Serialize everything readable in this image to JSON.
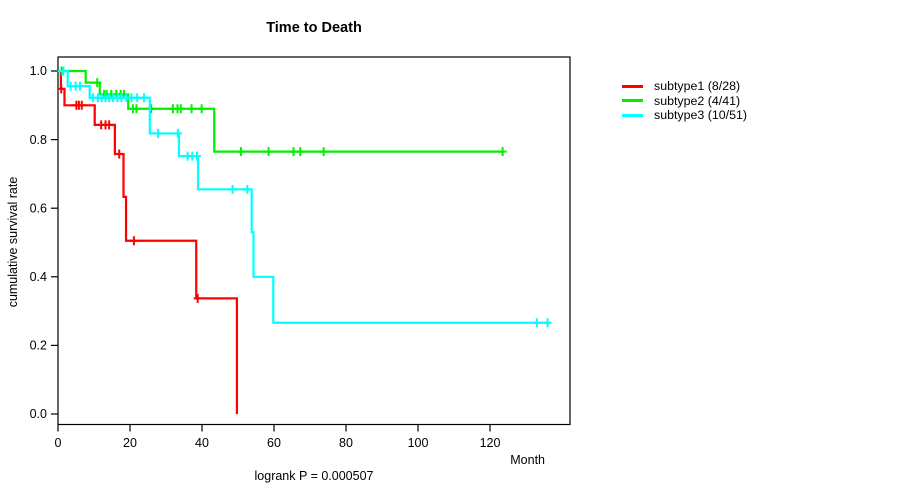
{
  "chart_data": {
    "type": "line",
    "subtype": "kaplan_meier_step_survival",
    "title": "Time to Death",
    "ylabel": "cumulative survival rate",
    "xlabel": "Month",
    "annotation": "logrank P = 0.000507",
    "xlim": [
      0,
      142
    ],
    "ylim": [
      0,
      1
    ],
    "x_ticks": [
      0,
      20,
      40,
      60,
      80,
      100,
      120
    ],
    "y_ticks": [
      0.0,
      0.2,
      0.4,
      0.6,
      0.8,
      1.0
    ],
    "grid": false,
    "legend_position": "right",
    "frame_color": "#000000",
    "series": [
      {
        "name": "subtype1 (8/28)",
        "color": "#FF0000",
        "steps": [
          [
            0,
            1.0
          ],
          [
            0.8,
            0.948
          ],
          [
            1.8,
            0.9
          ],
          [
            10.2,
            0.843
          ],
          [
            15.8,
            0.758
          ],
          [
            18.2,
            0.633
          ],
          [
            18.9,
            0.505
          ],
          [
            38.4,
            0.337
          ],
          [
            49.7,
            0.0
          ]
        ],
        "end_x": 49.7,
        "censors": [
          [
            0.9,
            0.948
          ],
          [
            5.1,
            0.9
          ],
          [
            5.8,
            0.9
          ],
          [
            6.6,
            0.9
          ],
          [
            12.0,
            0.843
          ],
          [
            13.2,
            0.843
          ],
          [
            14.2,
            0.843
          ],
          [
            17.0,
            0.758
          ],
          [
            21.1,
            0.505
          ],
          [
            38.8,
            0.337
          ]
        ]
      },
      {
        "name": "subtype2 (4/41)",
        "color": "#00F000",
        "steps": [
          [
            0,
            1.0
          ],
          [
            7.7,
            0.966
          ],
          [
            11.6,
            0.932
          ],
          [
            19.5,
            0.89
          ],
          [
            43.4,
            0.765
          ]
        ],
        "end_x": 123.5,
        "censors": [
          [
            1.0,
            1.0
          ],
          [
            10.9,
            0.966
          ],
          [
            12.8,
            0.932
          ],
          [
            13.5,
            0.932
          ],
          [
            14.8,
            0.932
          ],
          [
            16.2,
            0.932
          ],
          [
            17.4,
            0.932
          ],
          [
            18.3,
            0.932
          ],
          [
            20.8,
            0.89
          ],
          [
            21.8,
            0.89
          ],
          [
            25.9,
            0.89
          ],
          [
            31.9,
            0.89
          ],
          [
            33.2,
            0.89
          ],
          [
            34.1,
            0.89
          ],
          [
            37.1,
            0.89
          ],
          [
            39.9,
            0.89
          ],
          [
            50.8,
            0.765
          ],
          [
            58.5,
            0.765
          ],
          [
            65.4,
            0.765
          ],
          [
            67.3,
            0.765
          ],
          [
            73.8,
            0.765
          ],
          [
            123.5,
            0.765
          ]
        ]
      },
      {
        "name": "subtype3 (10/51)",
        "color": "#00FFFF",
        "steps": [
          [
            0,
            1.0
          ],
          [
            2.7,
            0.956
          ],
          [
            8.8,
            0.922
          ],
          [
            25.5,
            0.818
          ],
          [
            33.6,
            0.752
          ],
          [
            38.9,
            0.655
          ],
          [
            53.8,
            0.53
          ],
          [
            54.3,
            0.4
          ],
          [
            59.8,
            0.266
          ]
        ],
        "end_x": 136.9,
        "censors": [
          [
            1.5,
            1.0
          ],
          [
            3.5,
            0.956
          ],
          [
            4.9,
            0.956
          ],
          [
            6.1,
            0.956
          ],
          [
            9.7,
            0.922
          ],
          [
            11.1,
            0.922
          ],
          [
            12.1,
            0.922
          ],
          [
            13.2,
            0.922
          ],
          [
            14.2,
            0.922
          ],
          [
            15.3,
            0.922
          ],
          [
            16.5,
            0.922
          ],
          [
            17.6,
            0.922
          ],
          [
            19.0,
            0.922
          ],
          [
            20.4,
            0.922
          ],
          [
            22.0,
            0.922
          ],
          [
            23.9,
            0.922
          ],
          [
            27.8,
            0.818
          ],
          [
            33.3,
            0.818
          ],
          [
            36.0,
            0.752
          ],
          [
            37.3,
            0.752
          ],
          [
            38.6,
            0.752
          ],
          [
            48.5,
            0.655
          ],
          [
            52.6,
            0.655
          ],
          [
            133.0,
            0.266
          ],
          [
            136.0,
            0.266
          ]
        ]
      }
    ]
  }
}
